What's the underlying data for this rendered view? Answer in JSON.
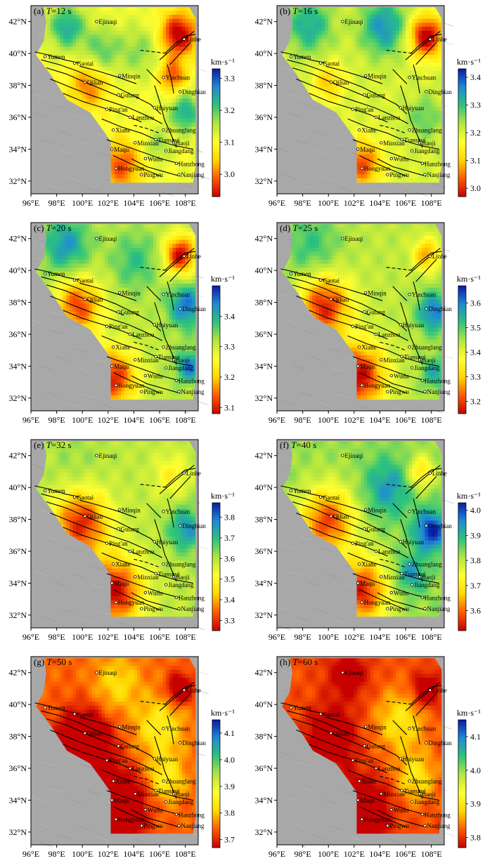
{
  "map": {
    "lon_ticks": [
      "96°E",
      "98°E",
      "100°E",
      "102°E",
      "104°E",
      "106°E",
      "108°E"
    ],
    "lat_ticks": [
      "42°N",
      "40°N",
      "38°N",
      "36°N",
      "34°N",
      "32°N"
    ],
    "colorbar_unit": "km·s⁻¹",
    "colorbar_colors": [
      "#c80000",
      "#ff5a00",
      "#ffd700",
      "#ffff30",
      "#b4e640",
      "#2ec47a",
      "#1e8ad6",
      "#0a1aa8"
    ],
    "background_color": "#a8a8a8",
    "fault_color": "#000000",
    "cities": [
      "Ejinaqi",
      "Linhe",
      "Yumen",
      "Gaotai",
      "Minqin",
      "Yinchuan",
      "Qilian",
      "Dingbian",
      "Gulang",
      "Haiyuan",
      "Ping'an",
      "Lanzhou",
      "Xiahe",
      "Zhuanglang",
      "Minxian",
      "Baoji",
      "Maqu",
      "Tianshui",
      "Jiangdang",
      "Wudu",
      "Hanzhong",
      "Hongyuan",
      "Pingwu",
      "Nanjiang"
    ]
  },
  "panels": [
    {
      "id": "a",
      "prefix": "(a) ",
      "tvar": "T",
      "period": "=12 s",
      "cb_ticks": [
        "3.3",
        "3.2",
        "3.1",
        "3.0"
      ],
      "range": [
        2.93,
        3.33
      ]
    },
    {
      "id": "b",
      "prefix": "(b) ",
      "tvar": "T",
      "period": "=16 s",
      "cb_ticks": [
        "3.4",
        "3.3",
        "3.2",
        "3.1",
        "3.0"
      ],
      "range": [
        2.97,
        3.43
      ]
    },
    {
      "id": "c",
      "prefix": "(c) ",
      "tvar": "T",
      "period": "=20 s",
      "cb_ticks": [
        "3.4",
        "3.3",
        "3.2",
        "3.1"
      ],
      "range": [
        3.08,
        3.5
      ]
    },
    {
      "id": "d",
      "prefix": "(d) ",
      "tvar": "T",
      "period": "=25 s",
      "cb_ticks": [
        "3.6",
        "3.5",
        "3.4",
        "3.3",
        "3.2"
      ],
      "range": [
        3.15,
        3.67
      ]
    },
    {
      "id": "e",
      "prefix": "(e) ",
      "tvar": "T",
      "period": "=32 s",
      "cb_ticks": [
        "3.8",
        "3.7",
        "3.6",
        "3.5",
        "3.4",
        "3.3"
      ],
      "range": [
        3.25,
        3.87
      ]
    },
    {
      "id": "f",
      "prefix": "(f) ",
      "tvar": "T",
      "period": "=40 s",
      "cb_ticks": [
        "4.0",
        "3.9",
        "3.8",
        "3.7",
        "3.6"
      ],
      "range": [
        3.52,
        4.03
      ]
    },
    {
      "id": "g",
      "prefix": "(g) ",
      "tvar": "T",
      "period": "=50 s",
      "cb_ticks": [
        "4.1",
        "4.0",
        "3.9",
        "3.8",
        "3.7"
      ],
      "range": [
        3.67,
        4.15
      ]
    },
    {
      "id": "h",
      "prefix": "(h) ",
      "tvar": "T",
      "period": "=60 s",
      "cb_ticks": [
        "4.1",
        "4.0",
        "3.9",
        "3.8"
      ],
      "range": [
        3.77,
        4.15
      ]
    }
  ]
}
